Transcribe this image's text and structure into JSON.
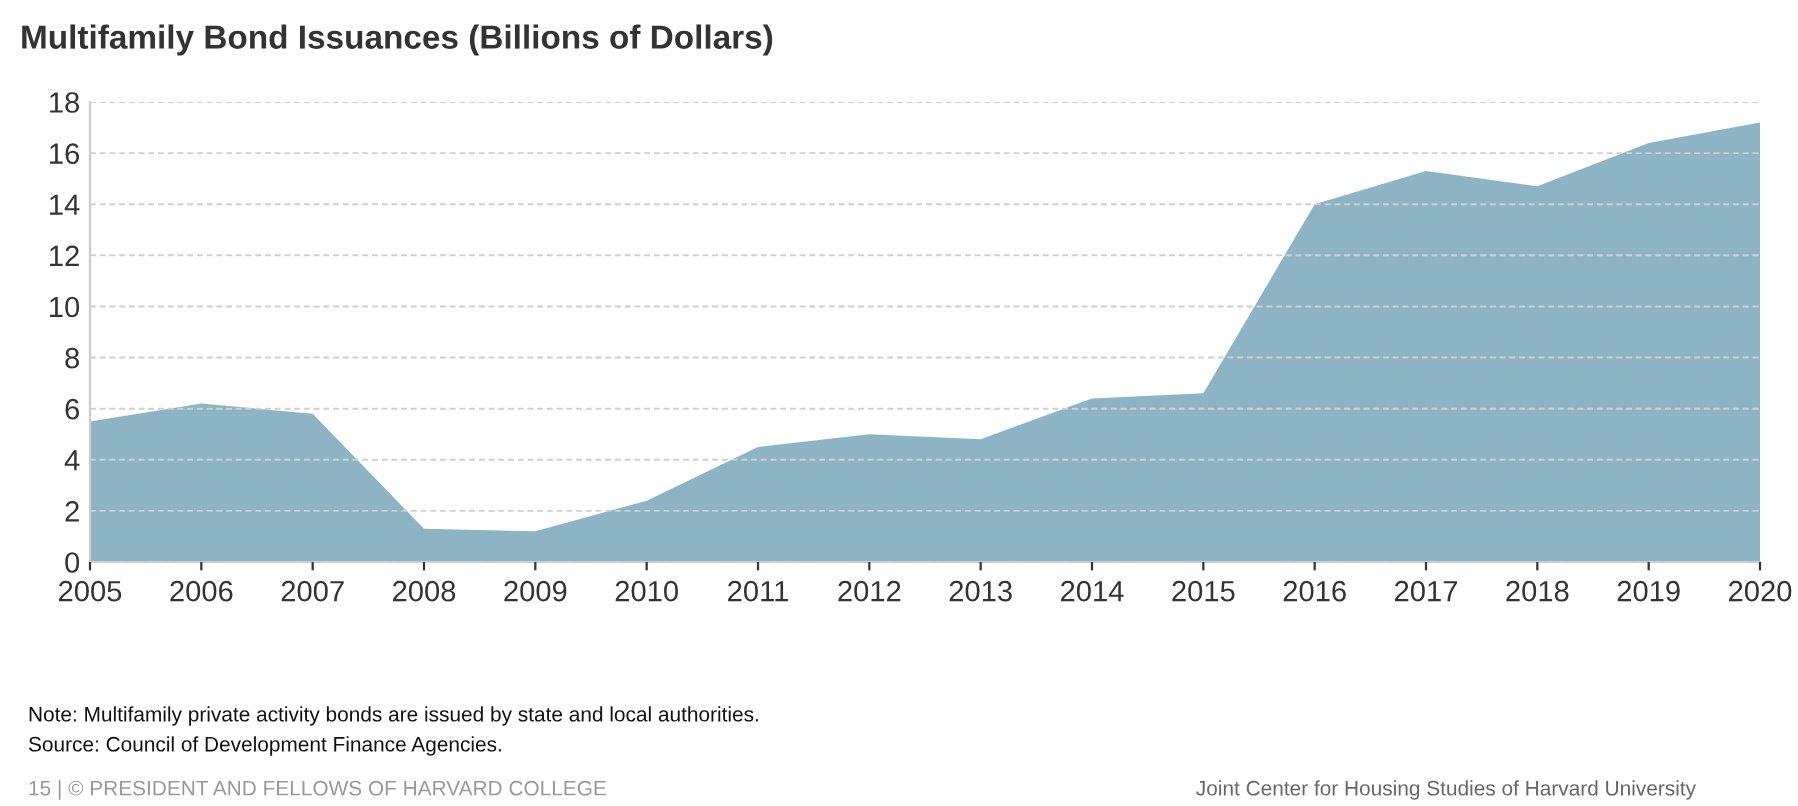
{
  "chart_data": {
    "type": "area",
    "title": "Multifamily Bond Issuances (Billions of Dollars)",
    "x": [
      2005,
      2006,
      2007,
      2008,
      2009,
      2010,
      2011,
      2012,
      2013,
      2014,
      2015,
      2016,
      2017,
      2018,
      2019,
      2020
    ],
    "series": [
      {
        "color": "#8db4c5",
        "values": [
          5.5,
          6.2,
          5.8,
          1.3,
          1.2,
          2.4,
          4.5,
          5.0,
          4.8,
          6.4,
          6.6,
          14.0,
          15.3,
          14.7,
          16.4,
          17.2
        ]
      }
    ],
    "xlim": [
      2005,
      2020
    ],
    "xticks": [
      2005,
      2006,
      2007,
      2008,
      2009,
      2010,
      2011,
      2012,
      2013,
      2014,
      2015,
      2016,
      2017,
      2018,
      2019,
      2020
    ],
    "ylim": [
      0,
      18
    ],
    "yticks": [
      0,
      2,
      4,
      6,
      8,
      10,
      12,
      14,
      16,
      18
    ],
    "grid": "y",
    "legend": false,
    "annotations": [
      "Note: Multifamily private activity bonds are issued by state and local authorities.",
      "Source: Council of Development Finance Agencies.",
      "15 | © PRESIDENT AND FELLOWS OF HARVARD COLLEGE",
      "Joint Center for Housing Studies of Harvard University"
    ]
  }
}
